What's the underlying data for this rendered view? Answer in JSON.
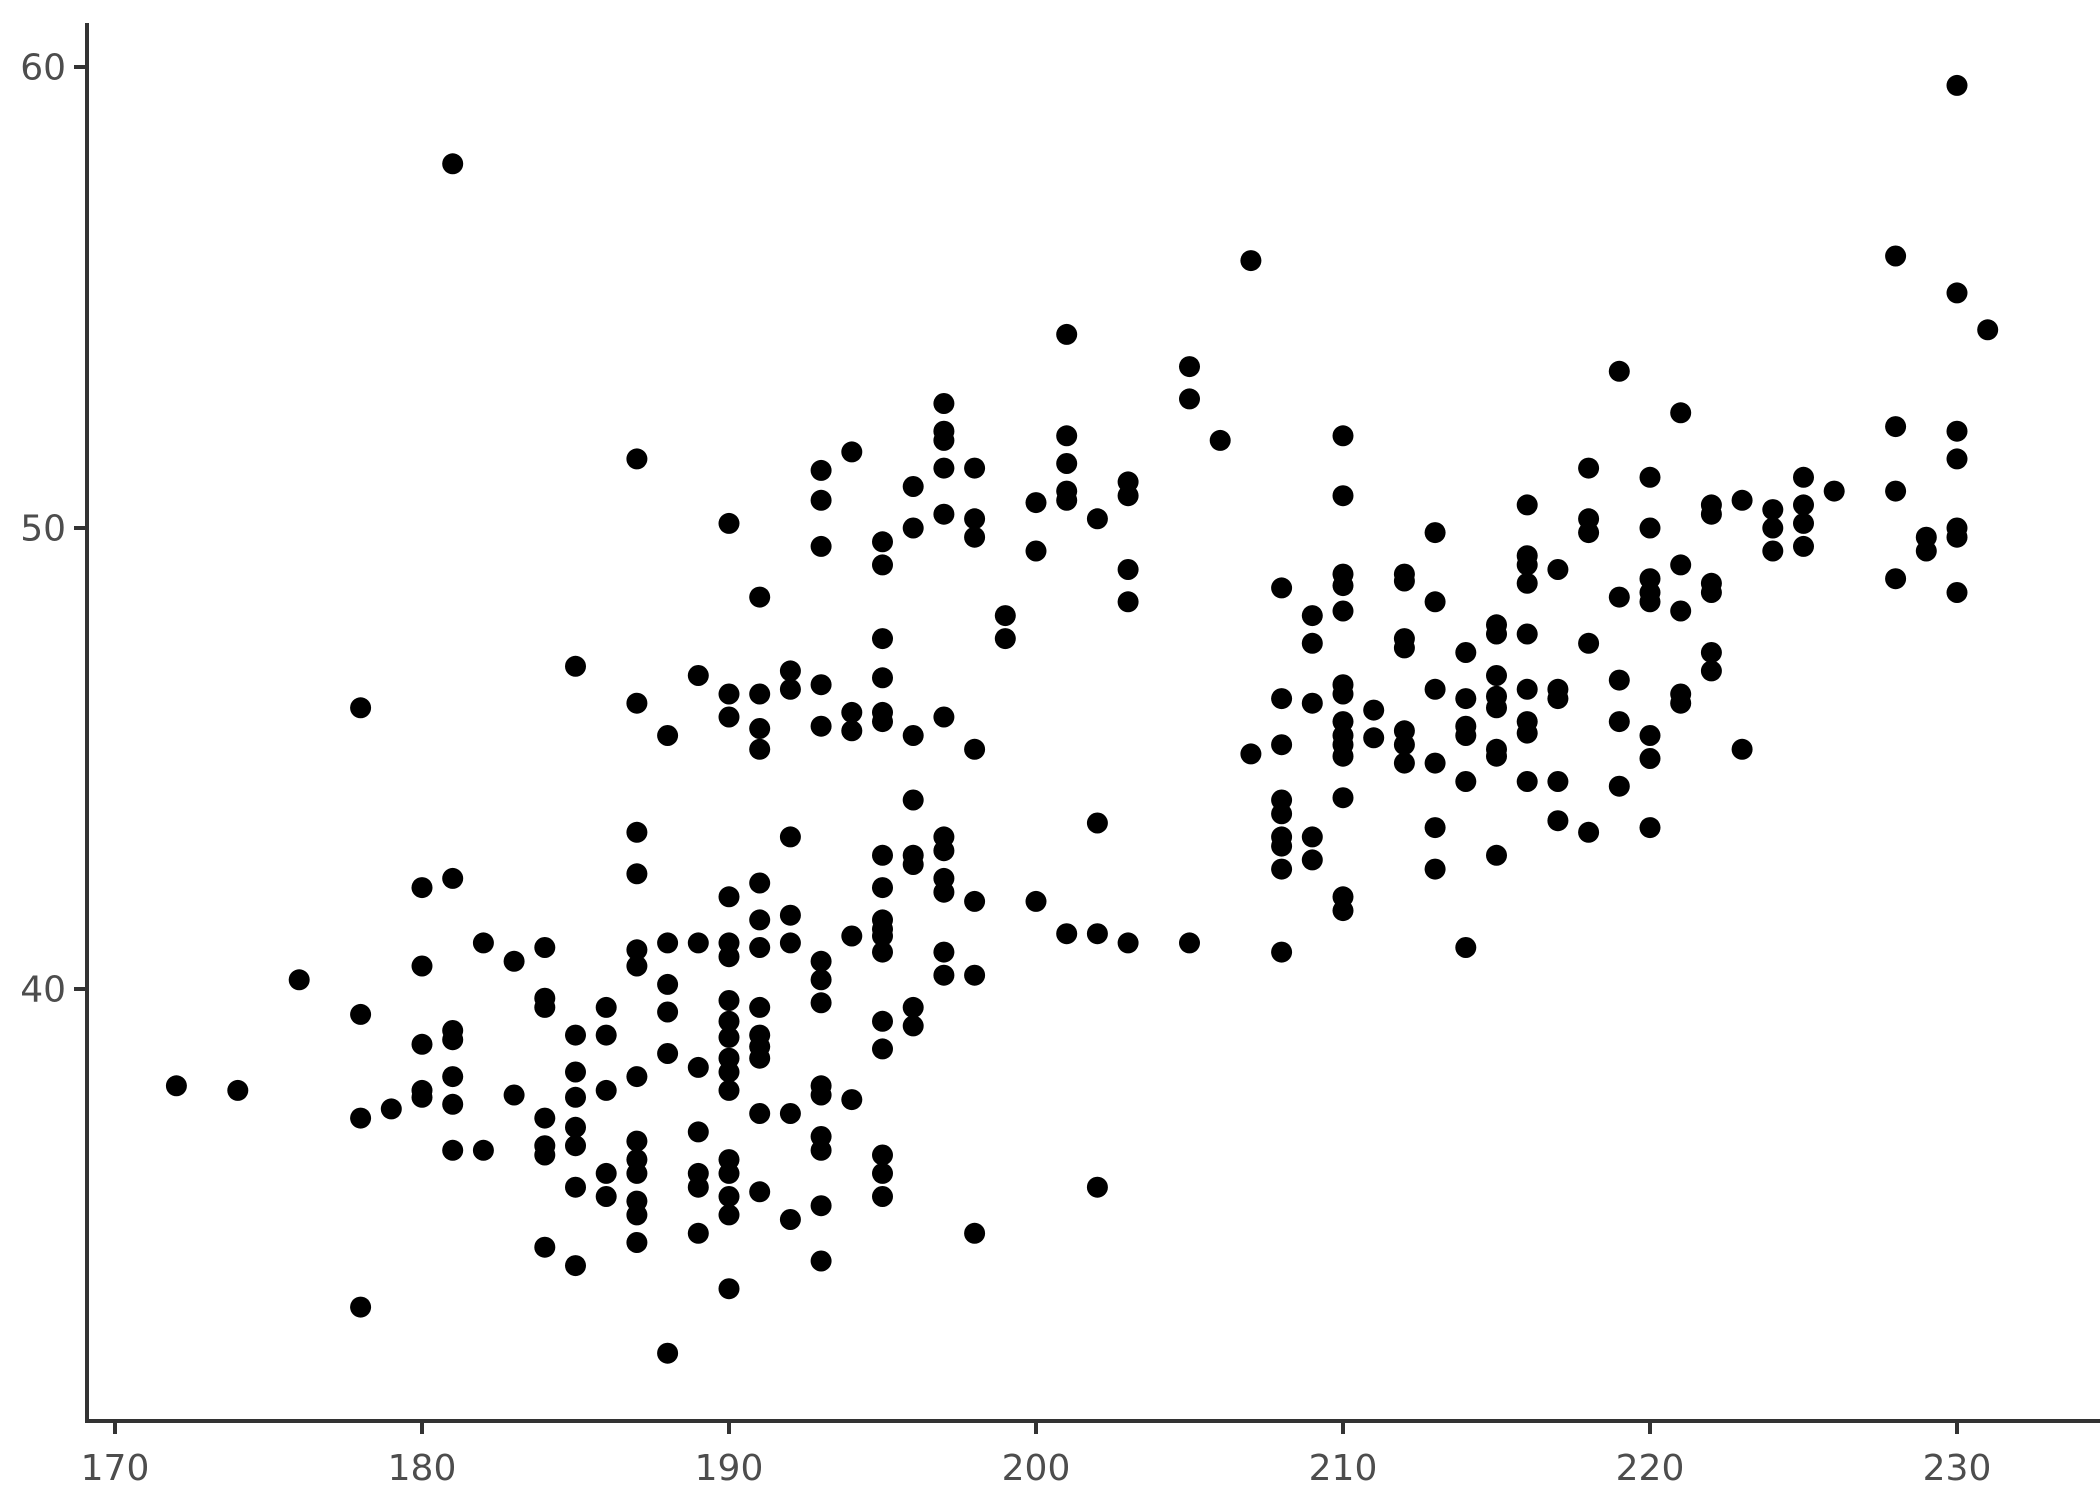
{
  "chart_data": {
    "type": "scatter",
    "title": "",
    "xlabel": "",
    "ylabel": "",
    "x_ticks": [
      170,
      180,
      190,
      200,
      210,
      220,
      230
    ],
    "y_ticks": [
      40,
      50,
      60
    ],
    "xlim": [
      169.1,
      234.7
    ],
    "ylim": [
      30.6,
      61.0
    ],
    "grid": false,
    "legend": "none",
    "marker": "filled-circle",
    "point_color": "#000000",
    "axis_color": "#333333",
    "tick_label_color": "#4d4d4d",
    "background_color": "#ffffff",
    "points": [
      [
        181,
        57.9
      ],
      [
        230,
        59.6
      ],
      [
        228,
        55.9
      ],
      [
        207,
        55.8
      ],
      [
        230,
        55.1
      ],
      [
        231,
        54.3
      ],
      [
        201,
        54.2
      ],
      [
        205,
        53.5
      ],
      [
        219,
        53.4
      ],
      [
        205,
        52.8
      ],
      [
        197,
        52.7
      ],
      [
        221,
        52.5
      ],
      [
        228,
        52.2
      ],
      [
        230,
        52.1
      ],
      [
        197,
        52.1
      ],
      [
        201,
        52.0
      ],
      [
        210,
        52.0
      ],
      [
        206,
        51.9
      ],
      [
        197,
        51.9
      ],
      [
        194,
        51.65
      ],
      [
        187,
        51.5
      ],
      [
        230,
        51.5
      ],
      [
        201,
        51.4
      ],
      [
        218,
        51.3
      ],
      [
        197,
        51.3
      ],
      [
        198,
        51.3
      ],
      [
        193,
        51.25
      ],
      [
        220,
        51.1
      ],
      [
        225,
        51.1
      ],
      [
        203,
        51.0
      ],
      [
        196,
        50.9
      ],
      [
        226,
        50.8
      ],
      [
        228,
        50.8
      ],
      [
        201,
        50.8
      ],
      [
        210,
        50.7
      ],
      [
        203,
        50.7
      ],
      [
        223,
        50.6
      ],
      [
        193,
        50.6
      ],
      [
        201,
        50.6
      ],
      [
        200,
        50.55
      ],
      [
        222,
        50.5
      ],
      [
        225,
        50.5
      ],
      [
        216,
        50.5
      ],
      [
        224,
        50.4
      ],
      [
        197,
        50.3
      ],
      [
        222,
        50.3
      ],
      [
        198,
        50.2
      ],
      [
        202,
        50.2
      ],
      [
        218,
        50.2
      ],
      [
        190,
        50.1
      ],
      [
        225,
        50.1
      ],
      [
        196,
        50.0
      ],
      [
        224,
        50.0
      ],
      [
        220,
        50.0
      ],
      [
        230,
        50.0
      ],
      [
        218,
        49.9
      ],
      [
        213,
        49.9
      ],
      [
        230,
        49.8
      ],
      [
        229,
        49.8
      ],
      [
        198,
        49.8
      ],
      [
        195,
        49.7
      ],
      [
        193,
        49.6
      ],
      [
        225,
        49.6
      ],
      [
        200,
        49.5
      ],
      [
        229,
        49.5
      ],
      [
        224,
        49.5
      ],
      [
        216,
        49.4
      ],
      [
        195,
        49.2
      ],
      [
        216,
        49.2
      ],
      [
        221,
        49.2
      ],
      [
        203,
        49.1
      ],
      [
        217,
        49.1
      ],
      [
        212,
        49.0
      ],
      [
        210,
        49.0
      ],
      [
        228,
        48.9
      ],
      [
        220,
        48.9
      ],
      [
        212,
        48.85
      ],
      [
        216,
        48.8
      ],
      [
        222,
        48.8
      ],
      [
        210,
        48.75
      ],
      [
        208,
        48.7
      ],
      [
        222,
        48.6
      ],
      [
        220,
        48.6
      ],
      [
        230,
        48.6
      ],
      [
        191,
        48.5
      ],
      [
        219,
        48.5
      ],
      [
        203,
        48.4
      ],
      [
        213,
        48.4
      ],
      [
        220,
        48.4
      ],
      [
        210,
        48.2
      ],
      [
        221,
        48.2
      ],
      [
        199,
        48.1
      ],
      [
        209,
        48.1
      ],
      [
        215,
        47.9
      ],
      [
        215,
        47.7
      ],
      [
        216,
        47.7
      ],
      [
        195,
        47.6
      ],
      [
        199,
        47.6
      ],
      [
        212,
        47.6
      ],
      [
        218,
        47.5
      ],
      [
        209,
        47.5
      ],
      [
        212,
        47.4
      ],
      [
        222,
        47.3
      ],
      [
        214,
        47.3
      ],
      [
        185,
        47.0
      ],
      [
        192,
        46.9
      ],
      [
        222,
        46.9
      ],
      [
        189,
        46.8
      ],
      [
        215,
        46.8
      ],
      [
        195,
        46.75
      ],
      [
        219,
        46.7
      ],
      [
        193,
        46.6
      ],
      [
        210,
        46.6
      ],
      [
        192,
        46.5
      ],
      [
        216,
        46.5
      ],
      [
        217,
        46.5
      ],
      [
        213,
        46.5
      ],
      [
        190,
        46.4
      ],
      [
        191,
        46.4
      ],
      [
        210,
        46.4
      ],
      [
        221,
        46.4
      ],
      [
        215,
        46.35
      ],
      [
        217,
        46.3
      ],
      [
        214,
        46.3
      ],
      [
        208,
        46.3
      ],
      [
        187,
        46.2
      ],
      [
        209,
        46.2
      ],
      [
        221,
        46.2
      ],
      [
        178,
        46.1
      ],
      [
        215,
        46.1
      ],
      [
        211,
        46.05
      ],
      [
        194,
        46.0
      ],
      [
        195,
        46.0
      ],
      [
        197,
        45.9
      ],
      [
        190,
        45.9
      ],
      [
        195,
        45.8
      ],
      [
        210,
        45.8
      ],
      [
        216,
        45.8
      ],
      [
        219,
        45.8
      ],
      [
        193,
        45.7
      ],
      [
        214,
        45.7
      ],
      [
        191,
        45.65
      ],
      [
        194,
        45.6
      ],
      [
        212,
        45.6
      ],
      [
        216,
        45.55
      ],
      [
        188,
        45.5
      ],
      [
        196,
        45.5
      ],
      [
        210,
        45.5
      ],
      [
        220,
        45.5
      ],
      [
        214,
        45.5
      ],
      [
        211,
        45.45
      ],
      [
        210,
        45.3
      ],
      [
        212,
        45.3
      ],
      [
        208,
        45.3
      ],
      [
        191,
        45.2
      ],
      [
        198,
        45.2
      ],
      [
        215,
        45.2
      ],
      [
        223,
        45.2
      ],
      [
        207,
        45.1
      ],
      [
        210,
        45.05
      ],
      [
        215,
        45.05
      ],
      [
        220,
        45.0
      ],
      [
        212,
        44.9
      ],
      [
        213,
        44.9
      ],
      [
        214,
        44.5
      ],
      [
        216,
        44.5
      ],
      [
        217,
        44.5
      ],
      [
        219,
        44.4
      ],
      [
        210,
        44.15
      ],
      [
        196,
        44.1
      ],
      [
        208,
        44.1
      ],
      [
        208,
        43.8
      ],
      [
        217,
        43.65
      ],
      [
        202,
        43.6
      ],
      [
        213,
        43.5
      ],
      [
        220,
        43.5
      ],
      [
        187,
        43.4
      ],
      [
        218,
        43.4
      ],
      [
        192,
        43.3
      ],
      [
        197,
        43.3
      ],
      [
        208,
        43.3
      ],
      [
        209,
        43.3
      ],
      [
        208,
        43.1
      ],
      [
        197,
        43.0
      ],
      [
        195,
        42.9
      ],
      [
        196,
        42.9
      ],
      [
        215,
        42.9
      ],
      [
        209,
        42.8
      ],
      [
        196,
        42.7
      ],
      [
        208,
        42.6
      ],
      [
        213,
        42.6
      ],
      [
        187,
        42.5
      ],
      [
        181,
        42.4
      ],
      [
        197,
        42.4
      ],
      [
        191,
        42.3
      ],
      [
        180,
        42.2
      ],
      [
        195,
        42.2
      ],
      [
        197,
        42.1
      ],
      [
        190,
        42.0
      ],
      [
        210,
        42.0
      ],
      [
        198,
        41.9
      ],
      [
        200,
        41.9
      ],
      [
        210,
        41.7
      ],
      [
        192,
        41.6
      ],
      [
        191,
        41.5
      ],
      [
        195,
        41.5
      ],
      [
        195,
        41.3
      ],
      [
        201,
        41.2
      ],
      [
        202,
        41.2
      ],
      [
        194,
        41.15
      ],
      [
        195,
        41.15
      ],
      [
        182,
        41.0
      ],
      [
        188,
        41.0
      ],
      [
        189,
        41.0
      ],
      [
        190,
        41.0
      ],
      [
        192,
        41.0
      ],
      [
        203,
        41.0
      ],
      [
        205,
        41.0
      ],
      [
        191,
        40.9
      ],
      [
        184,
        40.9
      ],
      [
        214,
        40.9
      ],
      [
        187,
        40.85
      ],
      [
        208,
        40.8
      ],
      [
        195,
        40.8
      ],
      [
        197,
        40.8
      ],
      [
        190,
        40.7
      ],
      [
        183,
        40.6
      ],
      [
        193,
        40.6
      ],
      [
        180,
        40.5
      ],
      [
        187,
        40.5
      ],
      [
        197,
        40.3
      ],
      [
        198,
        40.3
      ],
      [
        176,
        40.2
      ],
      [
        193,
        40.2
      ],
      [
        188,
        40.1
      ],
      [
        184,
        39.8
      ],
      [
        190,
        39.75
      ],
      [
        193,
        39.7
      ],
      [
        184,
        39.6
      ],
      [
        186,
        39.6
      ],
      [
        191,
        39.6
      ],
      [
        196,
        39.6
      ],
      [
        188,
        39.5
      ],
      [
        178,
        39.45
      ],
      [
        190,
        39.3
      ],
      [
        195,
        39.3
      ],
      [
        196,
        39.2
      ],
      [
        181,
        39.1
      ],
      [
        186,
        39.0
      ],
      [
        191,
        39.0
      ],
      [
        185,
        39.0
      ],
      [
        190,
        38.95
      ],
      [
        181,
        38.9
      ],
      [
        180,
        38.8
      ],
      [
        191,
        38.75
      ],
      [
        195,
        38.7
      ],
      [
        188,
        38.6
      ],
      [
        190,
        38.5
      ],
      [
        191,
        38.5
      ],
      [
        189,
        38.3
      ],
      [
        185,
        38.2
      ],
      [
        190,
        38.2
      ],
      [
        187,
        38.1
      ],
      [
        181,
        38.1
      ],
      [
        172,
        37.9
      ],
      [
        193,
        37.9
      ],
      [
        174,
        37.8
      ],
      [
        180,
        37.8
      ],
      [
        186,
        37.8
      ],
      [
        190,
        37.8
      ],
      [
        183,
        37.7
      ],
      [
        193,
        37.7
      ],
      [
        180,
        37.65
      ],
      [
        185,
        37.65
      ],
      [
        194,
        37.6
      ],
      [
        181,
        37.5
      ],
      [
        179,
        37.4
      ],
      [
        191,
        37.3
      ],
      [
        192,
        37.3
      ],
      [
        178,
        37.2
      ],
      [
        184,
        37.2
      ],
      [
        185,
        37.0
      ],
      [
        189,
        36.9
      ],
      [
        193,
        36.8
      ],
      [
        187,
        36.7
      ],
      [
        184,
        36.6
      ],
      [
        185,
        36.6
      ],
      [
        181,
        36.5
      ],
      [
        182,
        36.5
      ],
      [
        193,
        36.5
      ],
      [
        184,
        36.4
      ],
      [
        195,
        36.4
      ],
      [
        187,
        36.3
      ],
      [
        190,
        36.3
      ],
      [
        186,
        36.0
      ],
      [
        187,
        36.0
      ],
      [
        189,
        36.0
      ],
      [
        190,
        36.0
      ],
      [
        195,
        36.0
      ],
      [
        185,
        35.7
      ],
      [
        189,
        35.7
      ],
      [
        202,
        35.7
      ],
      [
        191,
        35.6
      ],
      [
        186,
        35.5
      ],
      [
        190,
        35.5
      ],
      [
        195,
        35.5
      ],
      [
        187,
        35.4
      ],
      [
        193,
        35.3
      ],
      [
        190,
        35.1
      ],
      [
        187,
        35.1
      ],
      [
        192,
        35.0
      ],
      [
        189,
        34.7
      ],
      [
        198,
        34.7
      ],
      [
        187,
        34.5
      ],
      [
        184,
        34.4
      ],
      [
        193,
        34.1
      ],
      [
        185,
        34.0
      ],
      [
        190,
        33.5
      ],
      [
        178,
        33.1
      ],
      [
        188,
        32.1
      ]
    ]
  }
}
